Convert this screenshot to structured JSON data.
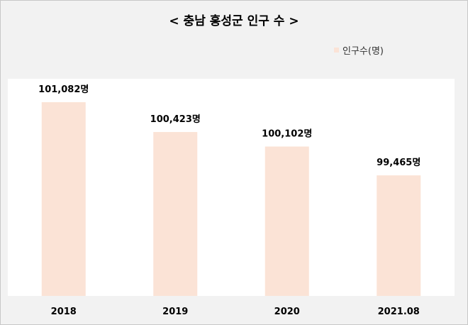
{
  "chart_data": {
    "type": "bar",
    "title": "< 충남 홍성군 인구 수 >",
    "legend": {
      "position": "top-right",
      "label": "인구수(명)"
    },
    "categories": [
      "2018",
      "2019",
      "2020",
      "2021.08"
    ],
    "values": [
      101082,
      100423,
      100102,
      99465
    ],
    "data_labels": [
      "101,082명",
      "100,423명",
      "100,102명",
      "99,465명"
    ],
    "ylim": [
      96800,
      101600
    ],
    "grid": false,
    "xlabel": "",
    "ylabel": "",
    "colors": {
      "bar": "#fbe3d6",
      "plot_bg": "#ffffff",
      "frame_bg": "#f2f2f2"
    }
  }
}
